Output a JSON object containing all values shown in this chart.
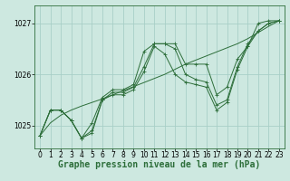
{
  "title": "Graphe pression niveau de la mer (hPa)",
  "background_color": "#cde8e0",
  "grid_color": "#a8cfc7",
  "line_color": "#2d6e3a",
  "marker_color": "#2d6e3a",
  "x_ticks": [
    0,
    1,
    2,
    3,
    4,
    5,
    6,
    7,
    8,
    9,
    10,
    11,
    12,
    13,
    14,
    15,
    16,
    17,
    18,
    19,
    20,
    21,
    22,
    23
  ],
  "y_ticks": [
    1025,
    1026,
    1027
  ],
  "ylim": [
    1024.55,
    1027.35
  ],
  "xlim": [
    -0.5,
    23.5
  ],
  "series1": [
    1024.8,
    1025.3,
    1025.3,
    1025.1,
    1024.75,
    1024.85,
    1025.5,
    1025.6,
    1025.6,
    1025.7,
    1026.05,
    1026.55,
    1026.4,
    1026.0,
    1025.85,
    1025.8,
    1025.75,
    1025.3,
    1025.45,
    1026.1,
    1026.55,
    1026.85,
    1027.0,
    1027.05
  ],
  "series2": [
    1024.8,
    1025.3,
    1025.3,
    1025.1,
    1024.75,
    1025.05,
    1025.55,
    1025.7,
    1025.7,
    1025.8,
    1026.45,
    1026.6,
    1026.6,
    1026.6,
    1026.2,
    1026.2,
    1026.2,
    1025.6,
    1025.75,
    1026.3,
    1026.55,
    1027.0,
    1027.05,
    1027.05
  ],
  "series3": [
    1024.8,
    1025.3,
    1025.3,
    1025.1,
    1024.75,
    1024.9,
    1025.5,
    1025.65,
    1025.65,
    1025.75,
    1026.15,
    1026.6,
    1026.6,
    1026.5,
    1026.0,
    1025.9,
    1025.85,
    1025.4,
    1025.5,
    1026.15,
    1026.6,
    1026.85,
    1027.0,
    1027.05
  ],
  "smooth": [
    1024.8,
    1025.05,
    1025.2,
    1025.3,
    1025.38,
    1025.45,
    1025.52,
    1025.6,
    1025.68,
    1025.76,
    1025.84,
    1025.92,
    1026.0,
    1026.1,
    1026.2,
    1026.28,
    1026.36,
    1026.44,
    1026.52,
    1026.6,
    1026.7,
    1026.82,
    1026.94,
    1027.05
  ],
  "title_fontsize": 7,
  "tick_fontsize": 5.5
}
